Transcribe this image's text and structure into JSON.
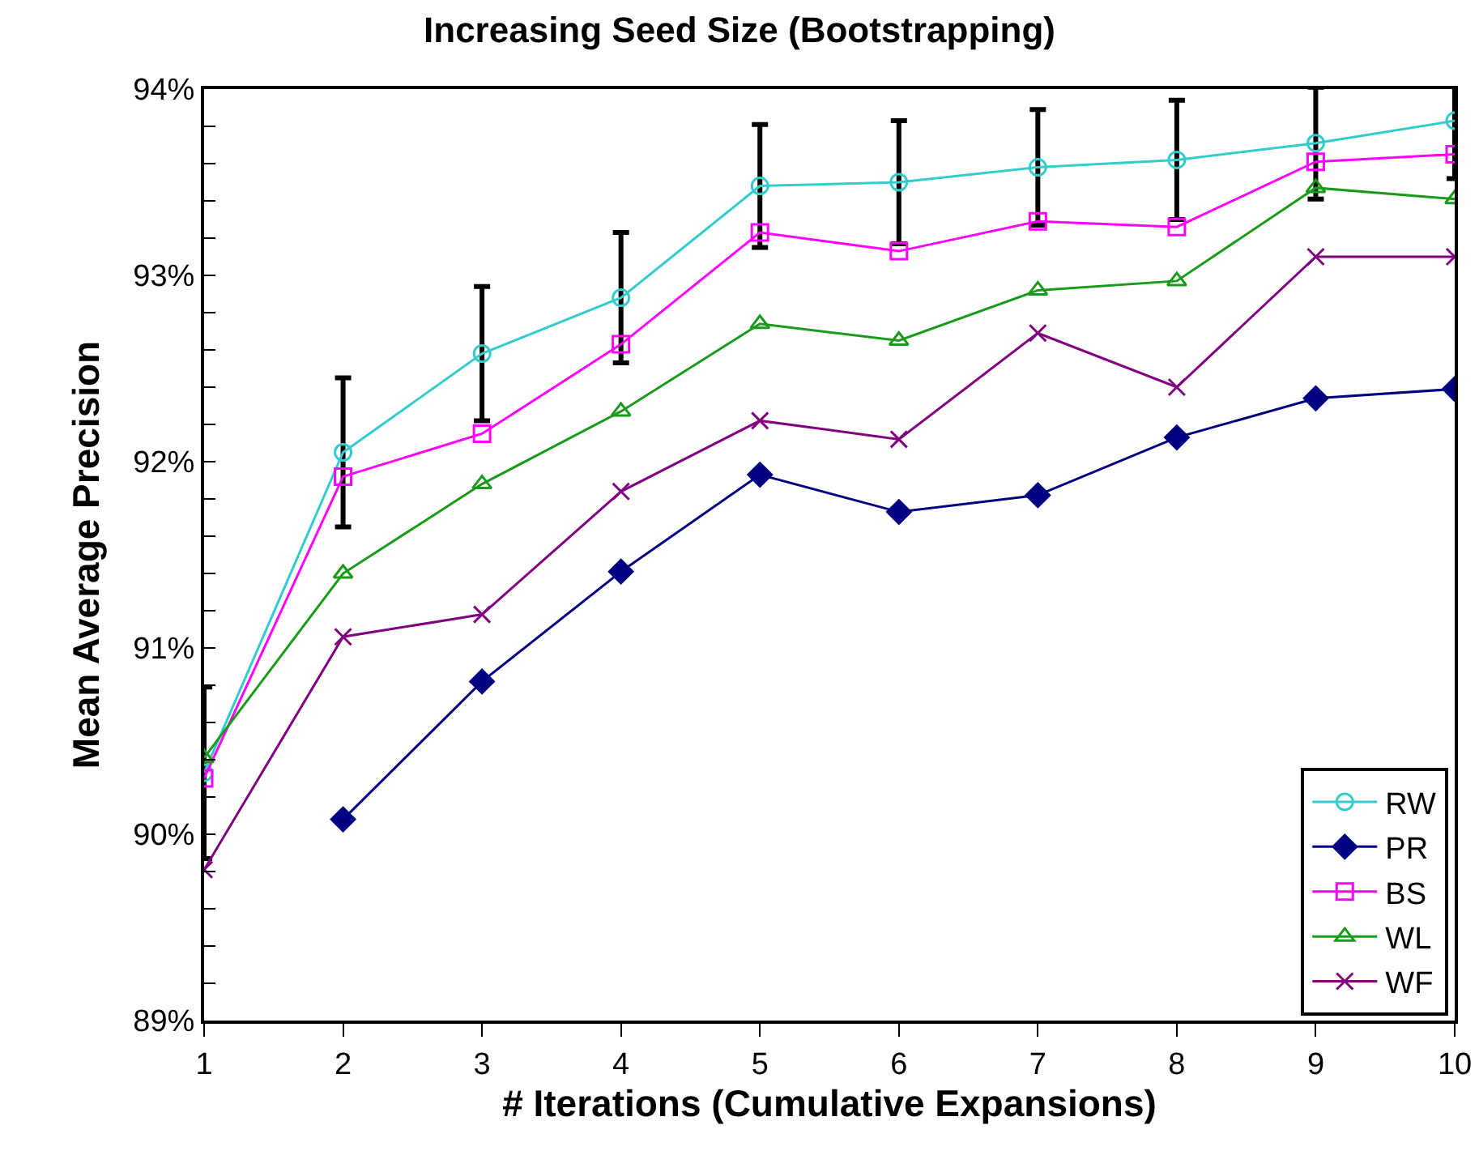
{
  "chart_data": {
    "type": "line",
    "title": "Increasing Seed Size (Bootstrapping)",
    "xlabel": "# Iterations (Cumulative Expansions)",
    "ylabel": "Mean Average Precision",
    "x": [
      1,
      2,
      3,
      4,
      5,
      6,
      7,
      8,
      9,
      10
    ],
    "xlim": [
      1,
      10
    ],
    "xticks": [
      1,
      2,
      3,
      4,
      5,
      6,
      7,
      8,
      9,
      10
    ],
    "ylim": [
      89,
      94
    ],
    "yticks": [
      {
        "value": 89,
        "label": "89%"
      },
      {
        "value": 89.2,
        "label": null
      },
      {
        "value": 89.4,
        "label": null
      },
      {
        "value": 89.6,
        "label": null
      },
      {
        "value": 89.8,
        "label": null
      },
      {
        "value": 90,
        "label": "90%"
      },
      {
        "value": 90.2,
        "label": null
      },
      {
        "value": 90.4,
        "label": null
      },
      {
        "value": 90.6,
        "label": null
      },
      {
        "value": 90.8,
        "label": null
      },
      {
        "value": 91,
        "label": "91%"
      },
      {
        "value": 91.2,
        "label": null
      },
      {
        "value": 91.4,
        "label": null
      },
      {
        "value": 91.6,
        "label": null
      },
      {
        "value": 91.8,
        "label": null
      },
      {
        "value": 92,
        "label": "92%"
      },
      {
        "value": 92.2,
        "label": null
      },
      {
        "value": 92.4,
        "label": null
      },
      {
        "value": 92.6,
        "label": null
      },
      {
        "value": 92.8,
        "label": null
      },
      {
        "value": 93,
        "label": "93%"
      },
      {
        "value": 93.2,
        "label": null
      },
      {
        "value": 93.4,
        "label": null
      },
      {
        "value": 93.6,
        "label": null
      },
      {
        "value": 93.8,
        "label": null
      },
      {
        "value": 94,
        "label": "94%"
      }
    ],
    "grid": false,
    "legend": "bottom right",
    "series": [
      {
        "name": "RW",
        "color": "#33cccc",
        "marker": "circle",
        "values": [
          90.33,
          92.05,
          92.58,
          92.88,
          93.48,
          93.5,
          93.58,
          93.62,
          93.71,
          93.83
        ],
        "errors": [
          0.46,
          0.4,
          0.36,
          0.35,
          0.33,
          0.33,
          0.31,
          0.32,
          0.3,
          0.31
        ]
      },
      {
        "name": "PR",
        "color": "#000080",
        "marker": "diamond",
        "values": [
          null,
          90.08,
          90.82,
          91.41,
          91.93,
          91.73,
          91.82,
          92.13,
          92.34,
          92.39
        ]
      },
      {
        "name": "BS",
        "color": "#ff00ff",
        "marker": "square",
        "values": [
          90.3,
          91.92,
          92.15,
          92.63,
          93.23,
          93.13,
          93.29,
          93.26,
          93.61,
          93.65
        ]
      },
      {
        "name": "WL",
        "color": "#1a9a1a",
        "marker": "triangle",
        "values": [
          90.41,
          91.4,
          91.88,
          92.27,
          92.74,
          92.65,
          92.92,
          92.97,
          93.47,
          93.41
        ]
      },
      {
        "name": "WF",
        "color": "#800080",
        "marker": "cross",
        "values": [
          89.81,
          91.06,
          91.18,
          91.84,
          92.22,
          92.12,
          92.69,
          92.4,
          93.1,
          93.1
        ]
      }
    ]
  }
}
